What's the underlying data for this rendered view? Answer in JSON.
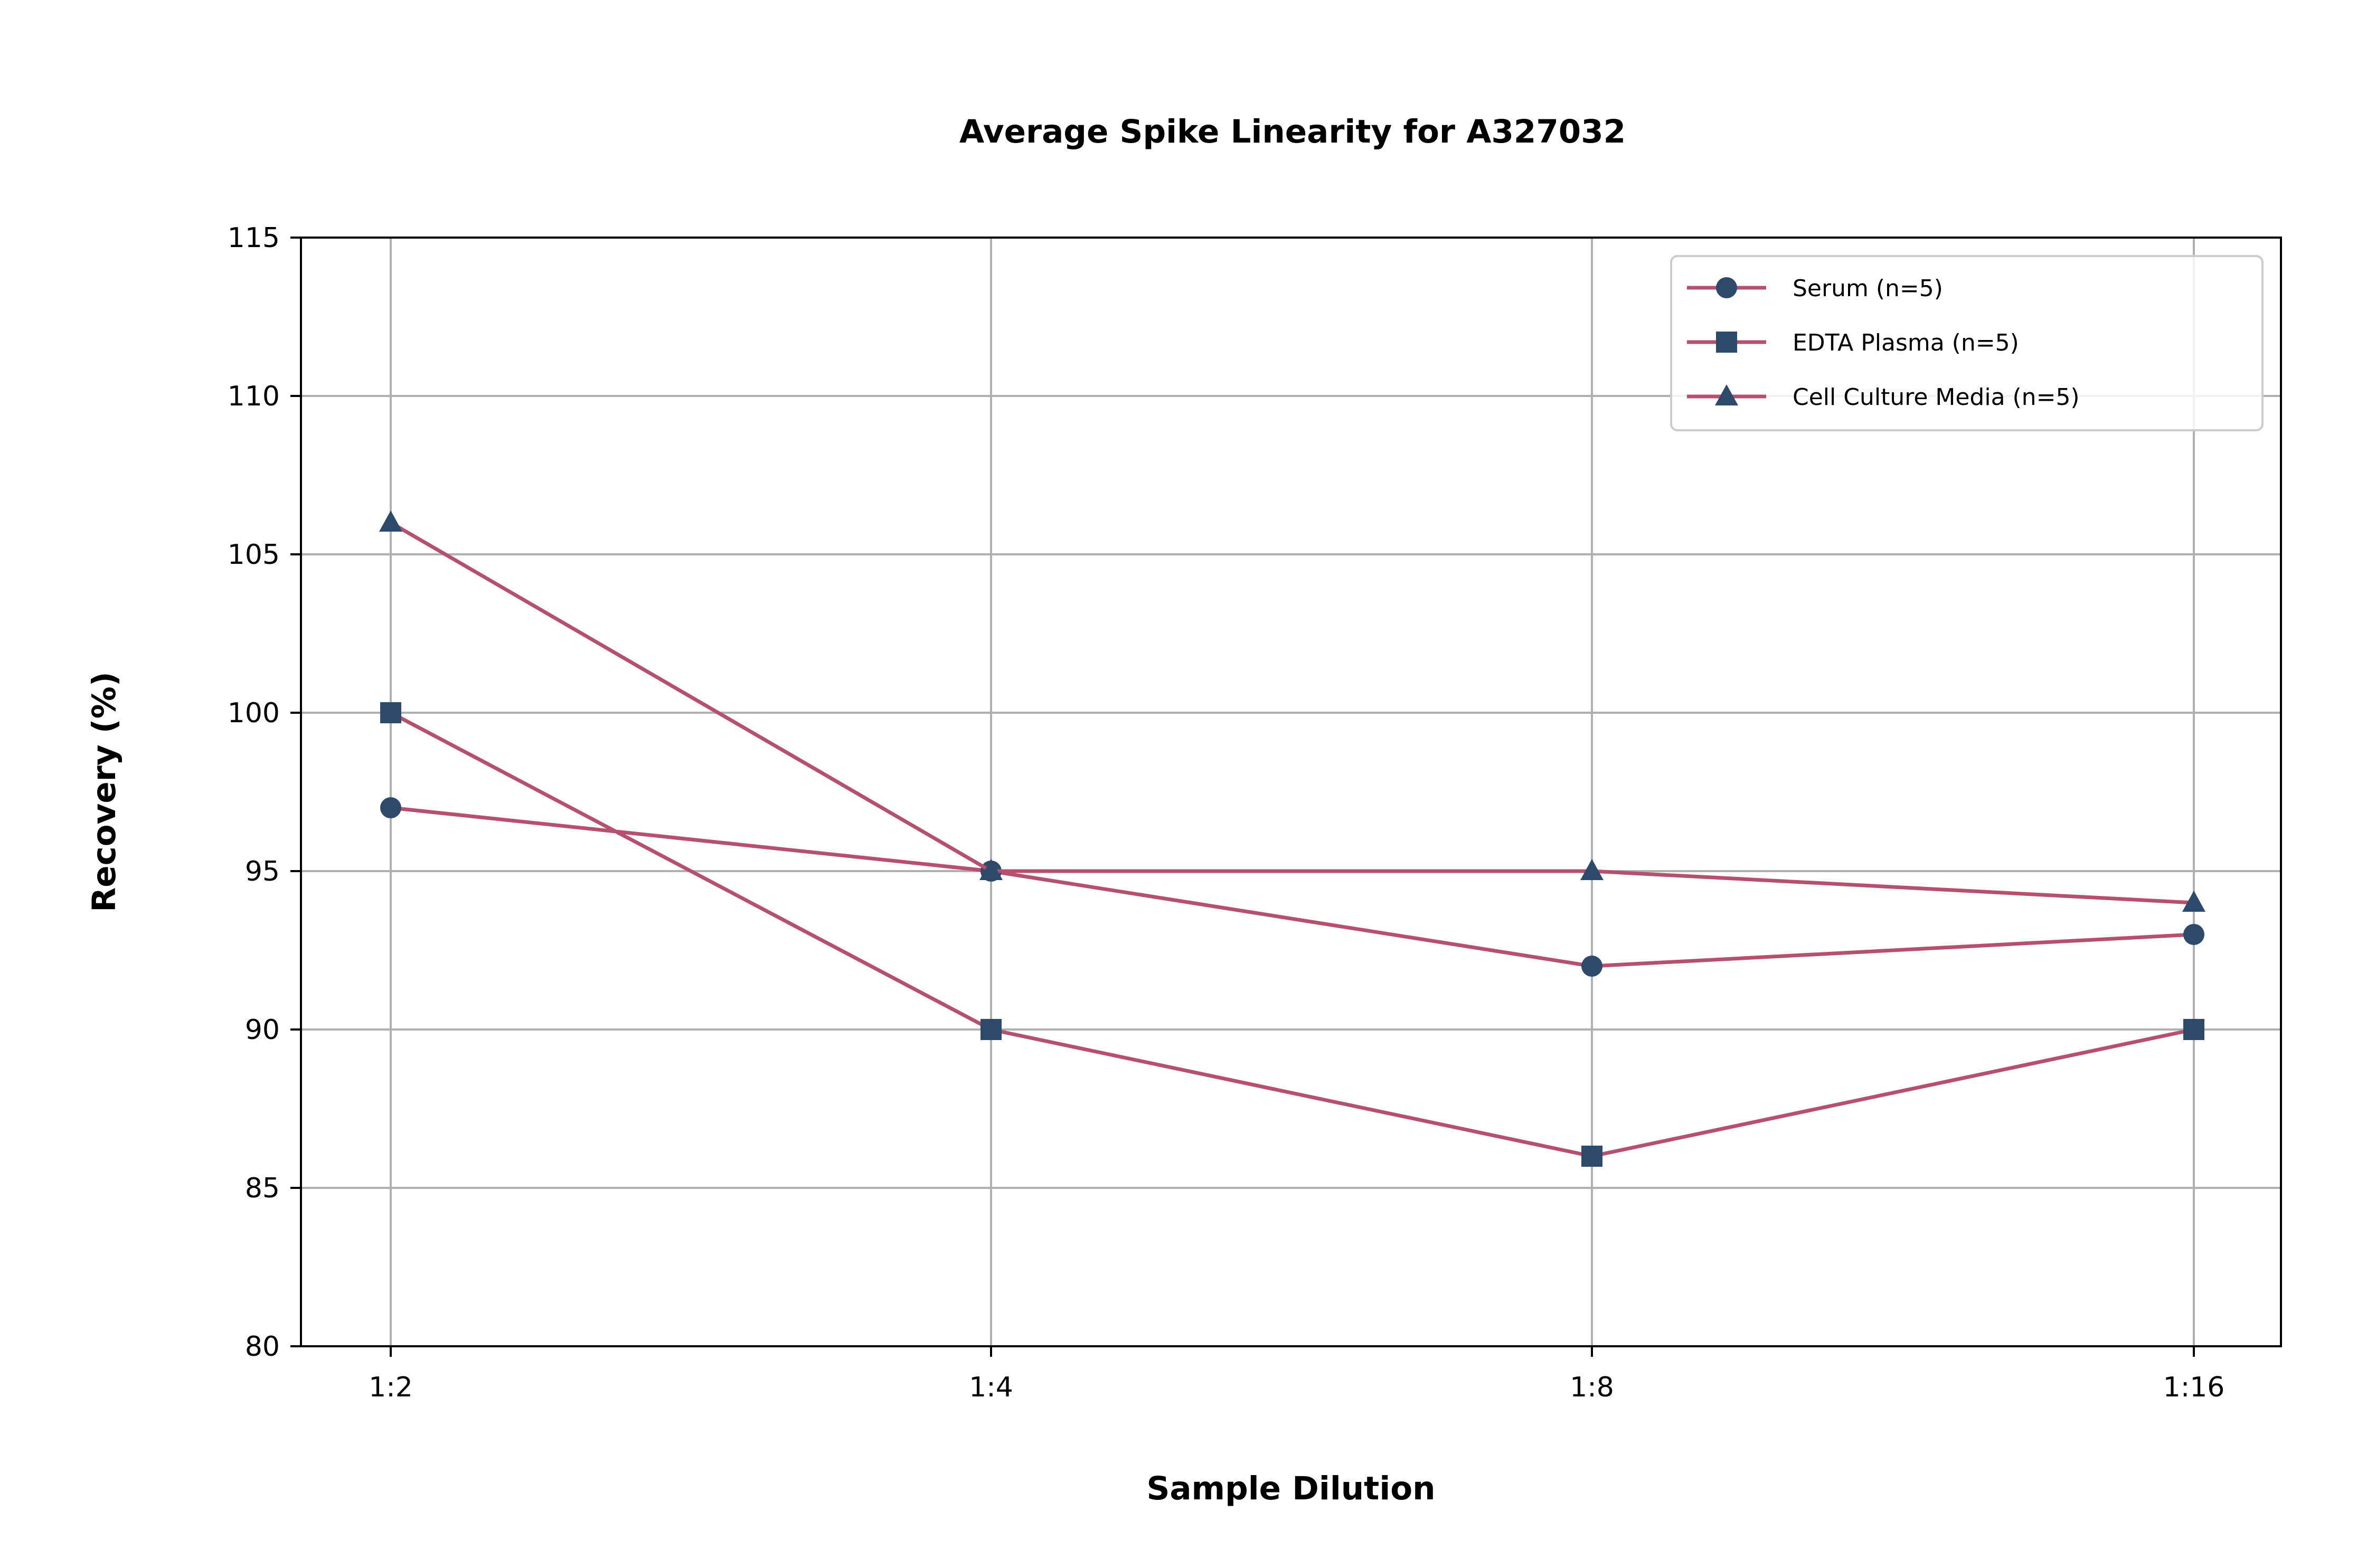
{
  "chart_data": {
    "type": "line",
    "title": "Average Spike Linearity for A327032",
    "xlabel": "Sample Dilution",
    "ylabel": "Recovery (%)",
    "categories": [
      "1:2",
      "1:4",
      "1:8",
      "1:16"
    ],
    "ylim": [
      80,
      115
    ],
    "yticks": [
      80,
      85,
      90,
      95,
      100,
      105,
      110,
      115
    ],
    "grid": true,
    "legend_position": "top-right",
    "line_color": "#b5506f",
    "marker_color": "#2d4a6b",
    "series": [
      {
        "name": "Serum (n=5)",
        "marker": "circle",
        "values": [
          97,
          95,
          92,
          93
        ]
      },
      {
        "name": "EDTA Plasma (n=5)",
        "marker": "square",
        "values": [
          100,
          90,
          86,
          90
        ]
      },
      {
        "name": "Cell Culture Media (n=5)",
        "marker": "triangle",
        "values": [
          106,
          95,
          95,
          94
        ]
      }
    ]
  }
}
